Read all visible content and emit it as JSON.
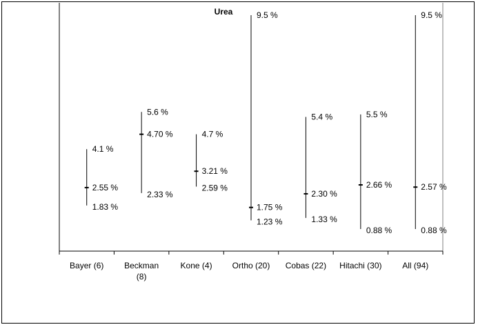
{
  "chart_data": {
    "type": "range",
    "title": "Urea",
    "categories": [
      {
        "label_lines": [
          "Bayer (6)"
        ]
      },
      {
        "label_lines": [
          "Beckman",
          "(8)"
        ]
      },
      {
        "label_lines": [
          "Kone (4)"
        ]
      },
      {
        "label_lines": [
          "Ortho (20)"
        ]
      },
      {
        "label_lines": [
          "Cobas (22)"
        ]
      },
      {
        "label_lines": [
          "Hitachi (30)"
        ]
      },
      {
        "label_lines": [
          "All (94)"
        ]
      }
    ],
    "series": [
      {
        "max": 4.1,
        "mid": 2.55,
        "min": 1.83,
        "max_label": "4.1 %",
        "mid_label": "2.55 %",
        "min_label": "1.83 %"
      },
      {
        "max": 5.6,
        "mid": 4.7,
        "min": 2.33,
        "max_label": "5.6 %",
        "mid_label": "4.70 %",
        "min_label": "2.33 %"
      },
      {
        "max": 4.7,
        "mid": 3.21,
        "min": 2.59,
        "max_label": "4.7 %",
        "mid_label": "3.21 %",
        "min_label": "2.59 %"
      },
      {
        "max": 9.5,
        "mid": 1.75,
        "min": 1.23,
        "max_label": "9.5 %",
        "mid_label": "1.75 %",
        "min_label": "1.23 %"
      },
      {
        "max": 5.4,
        "mid": 2.3,
        "min": 1.33,
        "max_label": "5.4 %",
        "mid_label": "2.30 %",
        "min_label": "1.33 %"
      },
      {
        "max": 5.5,
        "mid": 2.66,
        "min": 0.88,
        "max_label": "5.5 %",
        "mid_label": "2.66 %",
        "min_label": "0.88 %"
      },
      {
        "max": 9.5,
        "mid": 2.57,
        "min": 0.88,
        "max_label": "9.5 %",
        "mid_label": "2.57 %",
        "min_label": "0.88 %"
      }
    ],
    "grid": false,
    "legend": "none"
  }
}
